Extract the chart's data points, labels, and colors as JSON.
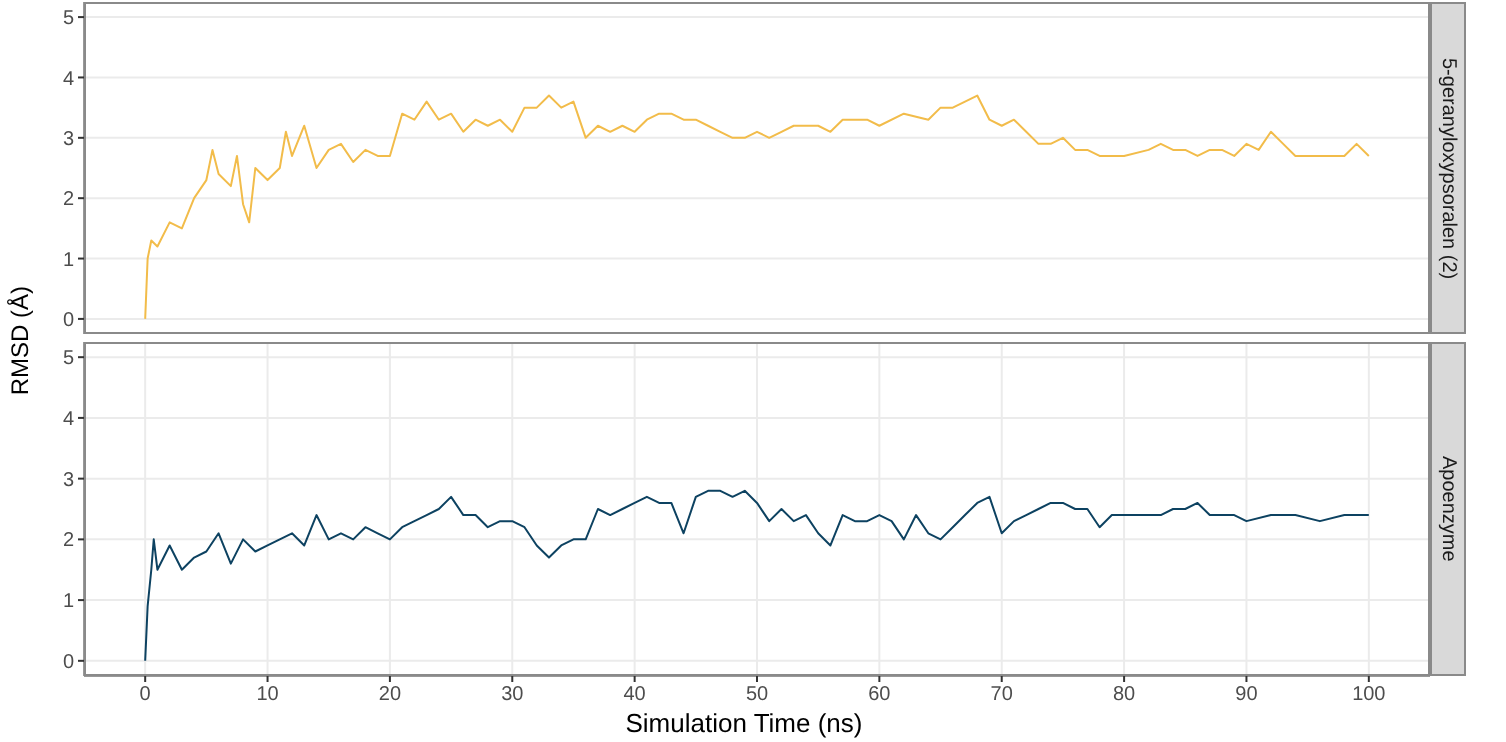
{
  "chart_data": [
    {
      "type": "line",
      "ylabel": "RMSD (Å)",
      "tick_labels": "y",
      "grid": true,
      "xlim": [
        -5,
        105
      ],
      "ylim": [
        -0.25,
        5.25
      ],
      "xticks": [
        0,
        10,
        20,
        30,
        40,
        50,
        60,
        70,
        80,
        90,
        100
      ],
      "yticks": [
        0,
        1,
        2,
        3,
        4,
        5
      ],
      "x": [
        0,
        0.2,
        0.5,
        1,
        2,
        3,
        4,
        5,
        5.5,
        6,
        7,
        7.5,
        8,
        8.5,
        9,
        10,
        11,
        11.5,
        12,
        13,
        14,
        15,
        16,
        17,
        18,
        19,
        20,
        21,
        22,
        23,
        24,
        25,
        26,
        27,
        28,
        29,
        30,
        31,
        32,
        33,
        34,
        35,
        36,
        37,
        38,
        39,
        40,
        41,
        42,
        43,
        44,
        45,
        46,
        47,
        48,
        49,
        50,
        51,
        52,
        53,
        54,
        55,
        56,
        57,
        58,
        59,
        60,
        62,
        64,
        65,
        66,
        67,
        68,
        69,
        70,
        71,
        72,
        73,
        74,
        75,
        76,
        77,
        78,
        79,
        80,
        82,
        83,
        84,
        85,
        86,
        87,
        88,
        89,
        90,
        91,
        92,
        93,
        94,
        95,
        96,
        97,
        98,
        99,
        100
      ],
      "series": [
        {
          "name": "5-geranyloxypsoralen (2)",
          "color": "#f2bc4a",
          "values": [
            0,
            1.0,
            1.3,
            1.2,
            1.6,
            1.5,
            2.0,
            2.3,
            2.8,
            2.4,
            2.2,
            2.7,
            1.9,
            1.6,
            2.5,
            2.3,
            2.5,
            3.1,
            2.7,
            3.2,
            2.5,
            2.8,
            2.9,
            2.6,
            2.8,
            2.7,
            2.7,
            3.4,
            3.3,
            3.6,
            3.3,
            3.4,
            3.1,
            3.3,
            3.2,
            3.3,
            3.1,
            3.5,
            3.5,
            3.7,
            3.5,
            3.6,
            3.0,
            3.2,
            3.1,
            3.2,
            3.1,
            3.3,
            3.4,
            3.4,
            3.3,
            3.3,
            3.2,
            3.1,
            3.0,
            3.0,
            3.1,
            3.0,
            3.1,
            3.2,
            3.2,
            3.2,
            3.1,
            3.3,
            3.3,
            3.3,
            3.2,
            3.4,
            3.3,
            3.5,
            3.5,
            3.6,
            3.7,
            3.3,
            3.2,
            3.3,
            3.1,
            2.9,
            2.9,
            3.0,
            2.8,
            2.8,
            2.7,
            2.7,
            2.7,
            2.8,
            2.9,
            2.8,
            2.8,
            2.7,
            2.8,
            2.8,
            2.7,
            2.9,
            2.8,
            3.1,
            2.9,
            2.7,
            2.7,
            2.7,
            2.7,
            2.7,
            2.9,
            2.7
          ]
        }
      ]
    },
    {
      "type": "line",
      "xlabel": "Simulation Time (ns)",
      "grid": true,
      "xlim": [
        -5,
        105
      ],
      "ylim": [
        -0.25,
        5.25
      ],
      "xticks": [
        0,
        10,
        20,
        30,
        40,
        50,
        60,
        70,
        80,
        90,
        100
      ],
      "yticks": [
        0,
        1,
        2,
        3,
        4,
        5
      ],
      "x": [
        0,
        0.2,
        0.5,
        0.7,
        1,
        2,
        3,
        4,
        5,
        6,
        7,
        8,
        9,
        10,
        11,
        12,
        13,
        14,
        15,
        16,
        17,
        18,
        19,
        20,
        21,
        22,
        23,
        24,
        25,
        26,
        27,
        28,
        29,
        30,
        31,
        32,
        33,
        34,
        35,
        36,
        37,
        38,
        39,
        40,
        41,
        42,
        43,
        44,
        45,
        46,
        47,
        48,
        49,
        50,
        51,
        52,
        53,
        54,
        55,
        56,
        57,
        58,
        59,
        60,
        61,
        62,
        63,
        64,
        65,
        66,
        67,
        68,
        69,
        70,
        71,
        72,
        73,
        74,
        75,
        76,
        77,
        78,
        79,
        80,
        81,
        82,
        83,
        84,
        85,
        86,
        87,
        88,
        89,
        90,
        92,
        94,
        96,
        98,
        100
      ],
      "series": [
        {
          "name": "Apoenzyme",
          "color": "#0d4261",
          "values": [
            0,
            0.9,
            1.5,
            2.0,
            1.5,
            1.9,
            1.5,
            1.7,
            1.8,
            2.1,
            1.6,
            2.0,
            1.8,
            1.9,
            2.0,
            2.1,
            1.9,
            2.4,
            2.0,
            2.1,
            2.0,
            2.2,
            2.1,
            2.0,
            2.2,
            2.3,
            2.4,
            2.5,
            2.7,
            2.4,
            2.4,
            2.2,
            2.3,
            2.3,
            2.2,
            1.9,
            1.7,
            1.9,
            2.0,
            2.0,
            2.5,
            2.4,
            2.5,
            2.6,
            2.7,
            2.6,
            2.6,
            2.1,
            2.7,
            2.8,
            2.8,
            2.7,
            2.8,
            2.6,
            2.3,
            2.5,
            2.3,
            2.4,
            2.1,
            1.9,
            2.4,
            2.3,
            2.3,
            2.4,
            2.3,
            2.0,
            2.4,
            2.1,
            2.0,
            2.2,
            2.4,
            2.6,
            2.7,
            2.1,
            2.3,
            2.4,
            2.5,
            2.6,
            2.6,
            2.5,
            2.5,
            2.2,
            2.4,
            2.4,
            2.4,
            2.4,
            2.4,
            2.5,
            2.5,
            2.6,
            2.4,
            2.4,
            2.4,
            2.3,
            2.4,
            2.4,
            2.3,
            2.4,
            2.4
          ]
        }
      ]
    }
  ]
}
